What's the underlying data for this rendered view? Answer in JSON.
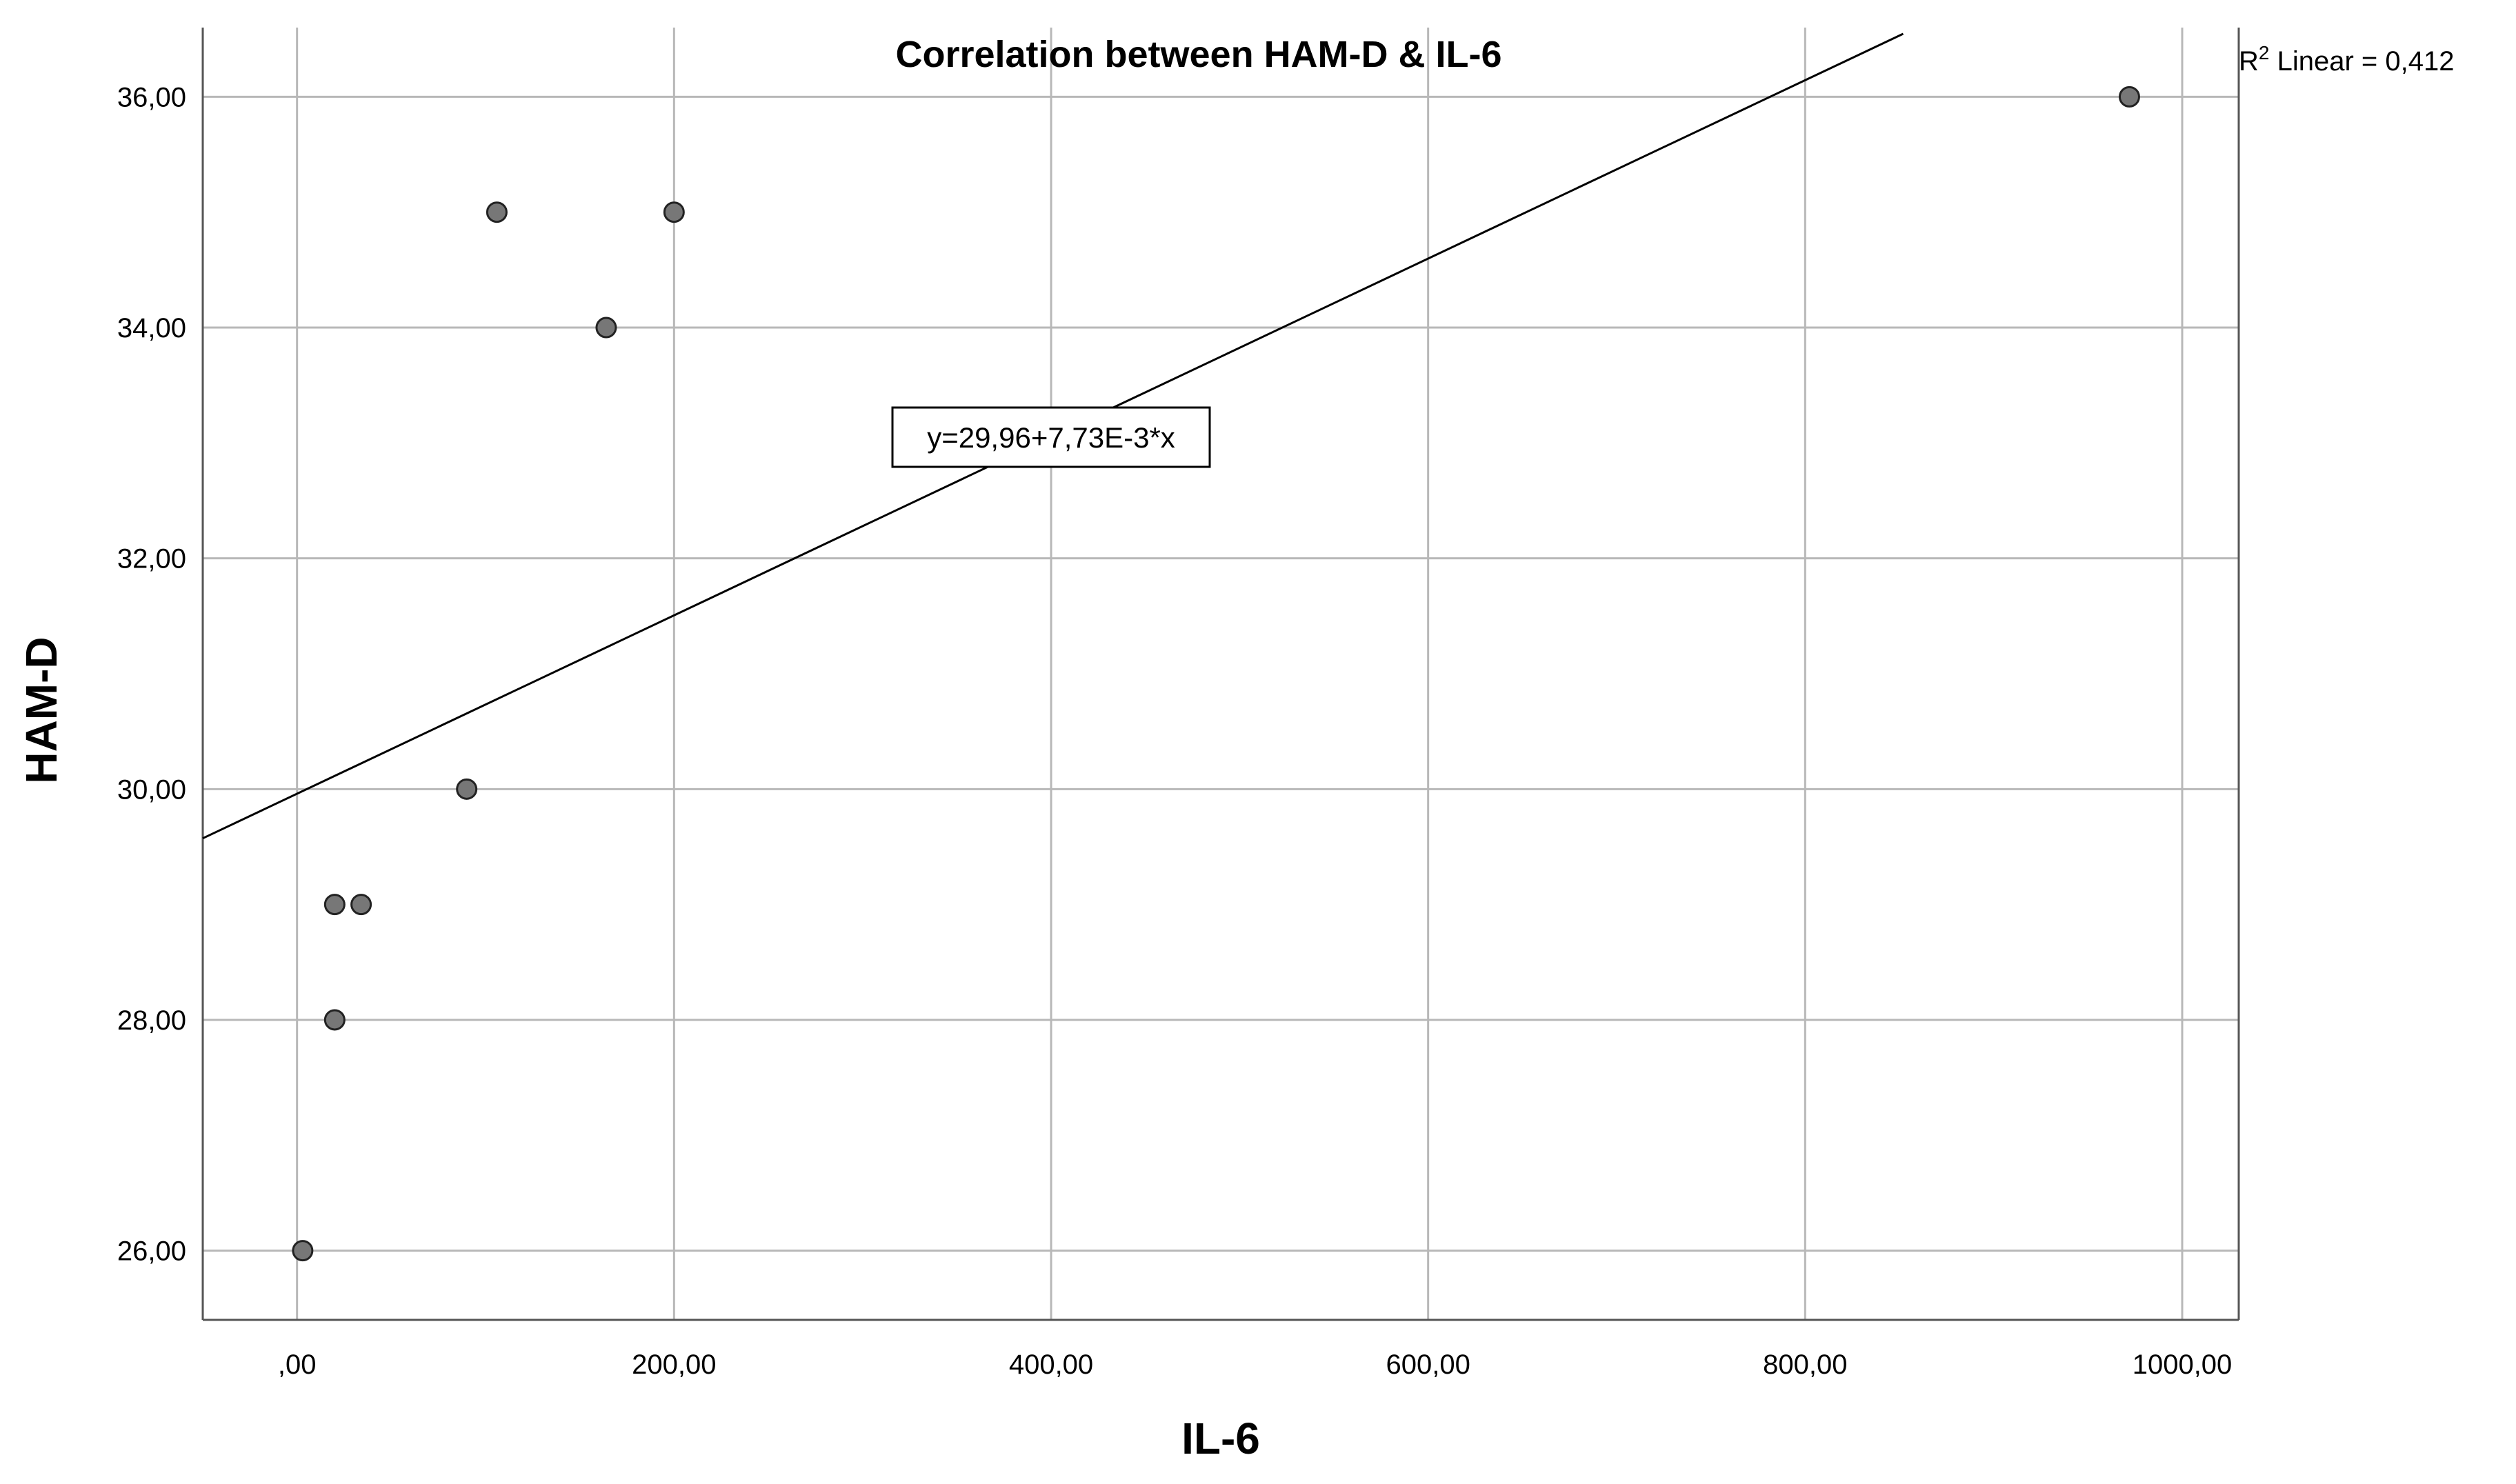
{
  "chart_data": {
    "type": "scatter",
    "title": "Correlation between HAM-D & IL-6",
    "xlabel": "IL-6",
    "ylabel": "HAM-D",
    "xlim": [
      -50,
      1030
    ],
    "ylim": [
      25.4,
      36.6
    ],
    "x_ticks": [
      0,
      200,
      400,
      600,
      800,
      1000
    ],
    "x_tick_labels": [
      ",00",
      "200,00",
      "400,00",
      "600,00",
      "800,00",
      "1000,00"
    ],
    "y_ticks": [
      26,
      28,
      30,
      32,
      34,
      36
    ],
    "y_tick_labels": [
      "26,00",
      "28,00",
      "30,00",
      "32,00",
      "34,00",
      "36,00"
    ],
    "grid": true,
    "points": [
      {
        "x": 3,
        "y": 26
      },
      {
        "x": 20,
        "y": 28
      },
      {
        "x": 20,
        "y": 29
      },
      {
        "x": 34,
        "y": 29
      },
      {
        "x": 90,
        "y": 30
      },
      {
        "x": 106,
        "y": 35
      },
      {
        "x": 164,
        "y": 34
      },
      {
        "x": 200,
        "y": 35
      },
      {
        "x": 972,
        "y": 36
      }
    ],
    "fit_line": {
      "intercept": 29.96,
      "slope": 0.00773,
      "x_start": -50,
      "x_end": 852
    },
    "equation_label": "y=29,96+7,73E-3*x",
    "equation_anchor": {
      "x": 400,
      "y": 33.05
    },
    "r2_prefix": "R",
    "r2_sup": "2",
    "r2_suffix": " Linear = 0,412",
    "colors": {
      "point_fill": "#777777",
      "point_stroke": "#222222",
      "grid": "#b8b8b8",
      "axis": "#555555",
      "line": "#000000"
    }
  }
}
